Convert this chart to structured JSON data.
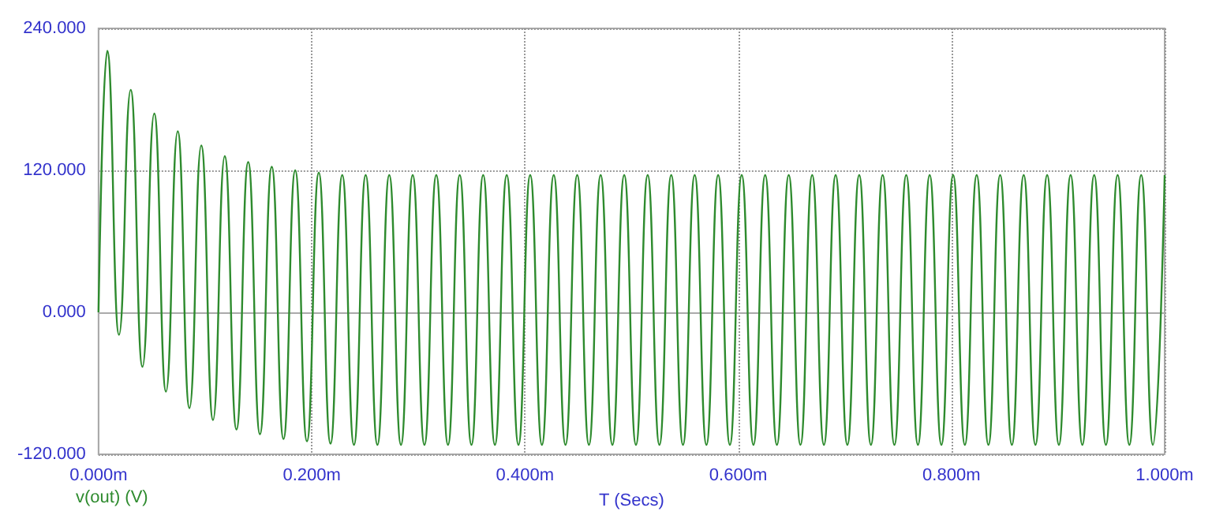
{
  "chart_data": {
    "type": "line",
    "xlabel": "T (Secs)",
    "xlim": [
      0,
      1
    ],
    "xticks": [
      {
        "value": 0,
        "label": "0.000m"
      },
      {
        "value": 0.2,
        "label": "0.200m"
      },
      {
        "value": 0.4,
        "label": "0.400m"
      },
      {
        "value": 0.6,
        "label": "0.600m"
      },
      {
        "value": 0.8,
        "label": "0.800m"
      },
      {
        "value": 1,
        "label": "1.000m"
      }
    ],
    "ylim": [
      -120,
      240
    ],
    "yticks": [
      {
        "value": -120,
        "label": "-120.000"
      },
      {
        "value": 0,
        "label": "0.000"
      },
      {
        "value": 120,
        "label": "120.000"
      },
      {
        "value": 240,
        "label": "240.000"
      }
    ],
    "grid": true,
    "legend": "bottom left",
    "marker": "none",
    "line_style": "solid",
    "series": [
      {
        "name": "v(out) (V)",
        "color": "#2e8b2e",
        "x": [
          0,
          0.0082,
          0.0192,
          0.0302,
          0.0412,
          0.0523,
          0.0633,
          0.0743,
          0.0853,
          0.0964,
          0.1074,
          0.1184,
          0.1294,
          0.1404,
          0.1514,
          0.1625,
          0.1735,
          0.1845,
          0.1955,
          0.2066,
          0.2176,
          0.2286,
          0.2396,
          0.2506,
          0.2616,
          0.2727,
          0.2837,
          0.2947,
          0.3057,
          0.3168,
          0.3278,
          0.3388,
          0.3498,
          0.3608,
          0.3718,
          0.3829,
          0.3939,
          0.4049,
          0.4159,
          0.427,
          0.438,
          0.449,
          0.46,
          0.471,
          0.482,
          0.4931,
          0.5041,
          0.5151,
          0.5261,
          0.5372,
          0.5482,
          0.5592,
          0.5702,
          0.5812,
          0.5922,
          0.6033,
          0.6143,
          0.6253,
          0.6363,
          0.6474,
          0.6584,
          0.6694,
          0.6804,
          0.6914,
          0.7024,
          0.7135,
          0.7245,
          0.7355,
          0.7465,
          0.7576,
          0.7686,
          0.7796,
          0.7906,
          0.8016,
          0.8126,
          0.8237,
          0.8347,
          0.8457,
          0.8567,
          0.8678,
          0.8788,
          0.8898,
          0.9008,
          0.9118,
          0.9228,
          0.9339,
          0.9449,
          0.9559,
          0.9669,
          0.978,
          0.989,
          1
        ],
        "values": [
          0,
          221,
          -19,
          188,
          -46,
          168,
          -67,
          153,
          -81,
          141,
          -91,
          132,
          -99,
          127,
          -103,
          123,
          -107,
          120,
          -109,
          118,
          -111,
          116,
          -112,
          116,
          -112,
          116,
          -112,
          116,
          -112,
          116,
          -112,
          116,
          -112,
          116,
          -112,
          116,
          -112,
          116,
          -112,
          116,
          -112,
          116,
          -112,
          116,
          -112,
          116,
          -112,
          116,
          -112,
          116,
          -112,
          116,
          -112,
          116,
          -112,
          116,
          -112,
          116,
          -112,
          116,
          -112,
          116,
          -112,
          116,
          -112,
          116,
          -112,
          116,
          -112,
          116,
          -112,
          116,
          -112,
          116,
          -112,
          116,
          -112,
          116,
          -112,
          116,
          -112,
          116,
          -112,
          116,
          -112,
          116,
          -112,
          116,
          -112,
          116,
          -112,
          116
        ]
      }
    ]
  }
}
